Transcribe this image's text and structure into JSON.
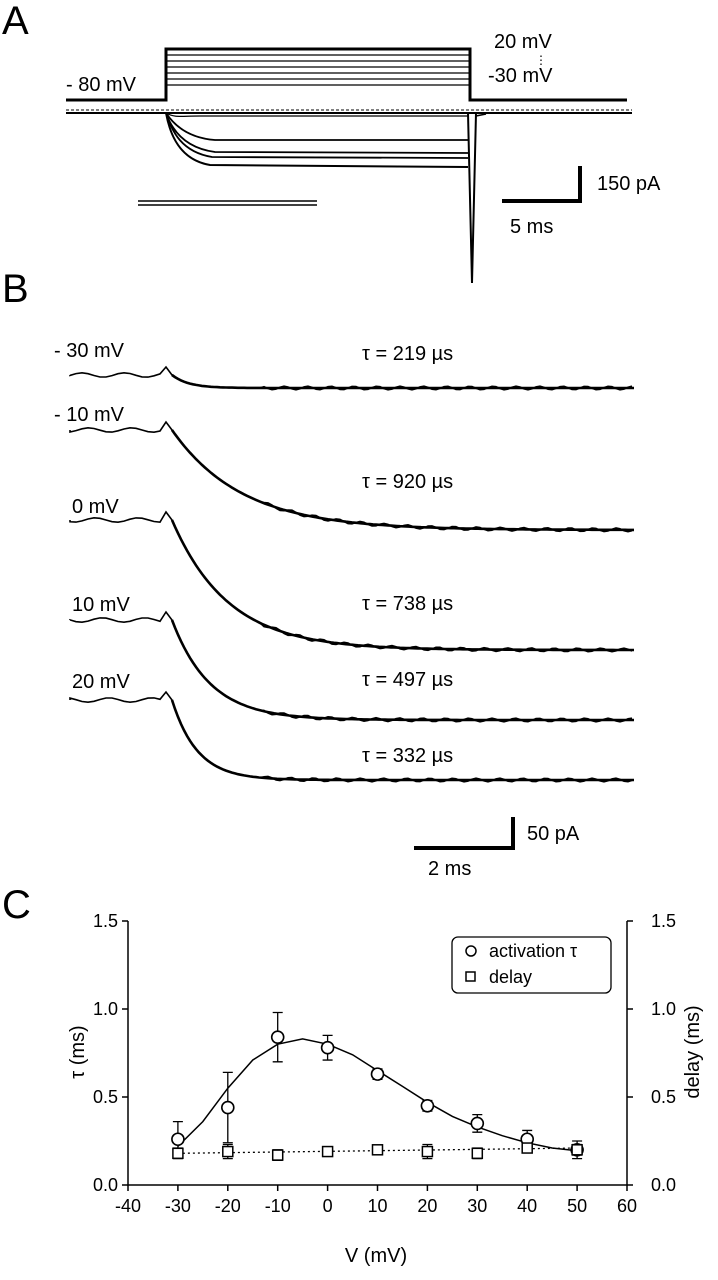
{
  "panel_a": {
    "letter": "A",
    "holding_label": "- 80 mV",
    "step_top_label": "20 mV",
    "step_bottom_label": "-30 mV",
    "scale_current": "150 pA",
    "scale_time": "5 ms"
  },
  "panel_b": {
    "letter": "B",
    "traces": [
      {
        "voltage": "- 30 mV",
        "tau": "τ = 219 µs",
        "amplitude_frac": 0.13
      },
      {
        "voltage": "- 10 mV",
        "tau": "τ = 920 µs",
        "amplitude_frac": 1.0
      },
      {
        "voltage": "0 mV",
        "tau": "τ = 738 µs",
        "amplitude_frac": 1.3
      },
      {
        "voltage": "10 mV",
        "tau": "τ = 497 µs",
        "amplitude_frac": 1.0
      },
      {
        "voltage": "20 mV",
        "tau": "τ = 332 µs",
        "amplitude_frac": 0.8
      }
    ],
    "scale_current": "50 pA",
    "scale_time": "2 ms"
  },
  "panel_c": {
    "letter": "C"
  },
  "chart_data": {
    "type": "scatter",
    "xlabel": "V (mV)",
    "ylabel": "τ (ms)",
    "y2label": "delay (ms)",
    "xlim": [
      -40,
      60
    ],
    "ylim": [
      0,
      1.5
    ],
    "y2lim": [
      0,
      1.5
    ],
    "x_ticks": [
      "-40",
      "-30",
      "-20",
      "-10",
      "0",
      "10",
      "20",
      "30",
      "40",
      "50",
      "60"
    ],
    "y_ticks": [
      "0.0",
      "0.5",
      "1.0",
      "1.5"
    ],
    "y2_ticks": [
      "0.0",
      "0.5",
      "1.0",
      "1.5"
    ],
    "grid": false,
    "legend_position": "top-right",
    "series": [
      {
        "name": "activation τ",
        "marker": "circle",
        "x": [
          -30,
          -20,
          -10,
          0,
          10,
          20,
          30,
          40,
          50
        ],
        "y": [
          0.26,
          0.44,
          0.84,
          0.78,
          0.63,
          0.45,
          0.35,
          0.26,
          0.2
        ],
        "err": [
          0.1,
          0.2,
          0.14,
          0.07,
          0.03,
          0.03,
          0.05,
          0.05,
          0.05
        ],
        "fit": [
          [
            -30,
            0.22
          ],
          [
            -25,
            0.36
          ],
          [
            -20,
            0.55
          ],
          [
            -15,
            0.71
          ],
          [
            -10,
            0.8
          ],
          [
            -5,
            0.83
          ],
          [
            0,
            0.8
          ],
          [
            5,
            0.74
          ],
          [
            10,
            0.65
          ],
          [
            15,
            0.56
          ],
          [
            20,
            0.47
          ],
          [
            25,
            0.39
          ],
          [
            30,
            0.33
          ],
          [
            35,
            0.28
          ],
          [
            40,
            0.24
          ],
          [
            45,
            0.21
          ],
          [
            50,
            0.195
          ]
        ]
      },
      {
        "name": "delay",
        "marker": "square",
        "x": [
          -30,
          -20,
          -10,
          0,
          10,
          20,
          30,
          40,
          50
        ],
        "y": [
          0.18,
          0.19,
          0.17,
          0.19,
          0.2,
          0.19,
          0.18,
          0.21,
          0.2
        ],
        "err": [
          0.03,
          0.04,
          0.03,
          0.01,
          0.01,
          0.04,
          0.03,
          0.02,
          0.03
        ],
        "fit_line": [
          [
            -30,
            0.18
          ],
          [
            50,
            0.21
          ]
        ]
      }
    ]
  }
}
